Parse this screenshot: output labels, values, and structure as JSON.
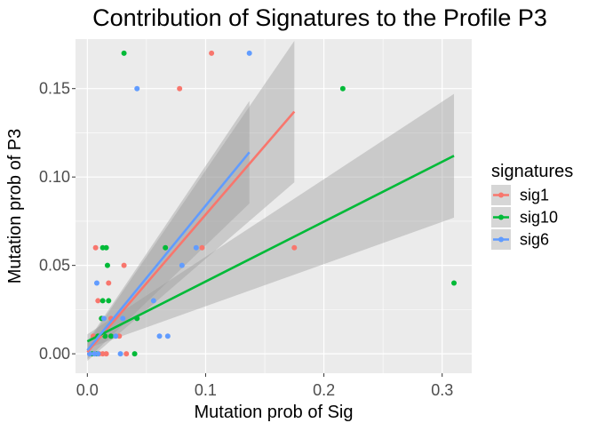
{
  "chart_data": {
    "type": "scatter",
    "title": "Contribution of Signatures to the Profile P3",
    "xlabel": "Mutation prob of Sig",
    "ylabel": "Mutation prob of P3",
    "xlim": [
      -0.01,
      0.325
    ],
    "ylim": [
      -0.011,
      0.178
    ],
    "x_ticks": [
      0.0,
      0.1,
      0.2,
      0.3
    ],
    "x_tick_labels": [
      "0.0",
      "0.1",
      "0.2",
      "0.3"
    ],
    "y_ticks": [
      0.0,
      0.05,
      0.1,
      0.15
    ],
    "y_tick_labels": [
      "0.00",
      "0.05",
      "0.10",
      "0.15"
    ],
    "grid": true,
    "legend": {
      "title": "signatures",
      "position": "right"
    },
    "series": [
      {
        "name": "sig1",
        "color": "#F8766D",
        "points": [
          [
            0.105,
            0.17
          ],
          [
            0.078,
            0.15
          ],
          [
            0.175,
            0.06
          ],
          [
            0.097,
            0.06
          ],
          [
            0.007,
            0.06
          ],
          [
            0.031,
            0.05
          ],
          [
            0.018,
            0.04
          ],
          [
            0.009,
            0.03
          ],
          [
            0.02,
            0.02
          ],
          [
            0.012,
            0.02
          ],
          [
            0.005,
            0.01
          ],
          [
            0.01,
            0.01
          ],
          [
            0.015,
            0.01
          ],
          [
            0.02,
            0.01
          ],
          [
            0.027,
            0.01
          ],
          [
            0.002,
            0.0
          ],
          [
            0.006,
            0.0
          ],
          [
            0.01,
            0.0
          ],
          [
            0.013,
            0.0
          ],
          [
            0.016,
            0.0
          ],
          [
            0.033,
            0.0
          ]
        ],
        "fit": {
          "x": [
            0.0,
            0.175
          ],
          "y": [
            0.001,
            0.137
          ],
          "ci_lower": [
            -0.004,
            0.097
          ],
          "ci_upper": [
            0.006,
            0.177
          ]
        }
      },
      {
        "name": "sig10",
        "color": "#00BA38",
        "points": [
          [
            0.031,
            0.17
          ],
          [
            0.216,
            0.15
          ],
          [
            0.31,
            0.04
          ],
          [
            0.066,
            0.06
          ],
          [
            0.016,
            0.06
          ],
          [
            0.013,
            0.06
          ],
          [
            0.017,
            0.05
          ],
          [
            0.018,
            0.03
          ],
          [
            0.013,
            0.03
          ],
          [
            0.012,
            0.02
          ],
          [
            0.042,
            0.02
          ],
          [
            0.009,
            0.01
          ],
          [
            0.015,
            0.01
          ],
          [
            0.02,
            0.01
          ],
          [
            0.004,
            0.0
          ],
          [
            0.008,
            0.0
          ],
          [
            0.04,
            0.0
          ]
        ],
        "fit": {
          "x": [
            0.0,
            0.31
          ],
          "y": [
            0.007,
            0.112
          ],
          "ci_lower": [
            0.003,
            0.077
          ],
          "ci_upper": [
            0.011,
            0.147
          ]
        }
      },
      {
        "name": "sig6",
        "color": "#619CFF",
        "points": [
          [
            0.137,
            0.17
          ],
          [
            0.042,
            0.15
          ],
          [
            0.092,
            0.06
          ],
          [
            0.08,
            0.05
          ],
          [
            0.008,
            0.04
          ],
          [
            0.056,
            0.03
          ],
          [
            0.014,
            0.02
          ],
          [
            0.03,
            0.02
          ],
          [
            0.061,
            0.01
          ],
          [
            0.068,
            0.01
          ],
          [
            0.024,
            0.01
          ],
          [
            0.002,
            0.0
          ],
          [
            0.006,
            0.0
          ],
          [
            0.009,
            0.0
          ],
          [
            0.028,
            0.0
          ]
        ],
        "fit": {
          "x": [
            0.0,
            0.137
          ],
          "y": [
            0.002,
            0.114
          ],
          "ci_lower": [
            -0.003,
            0.085
          ],
          "ci_upper": [
            0.007,
            0.143
          ]
        }
      }
    ]
  }
}
